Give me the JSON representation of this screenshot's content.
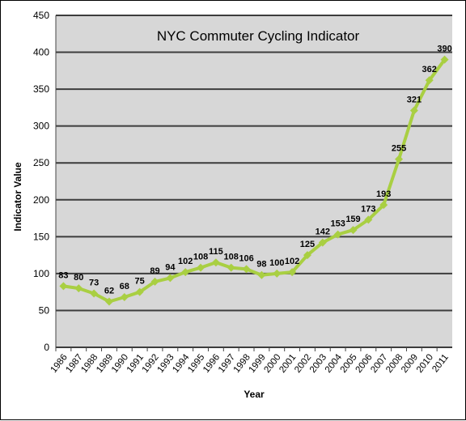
{
  "chart_data": {
    "type": "line",
    "title": "NYC Commuter Cycling Indicator",
    "xlabel": "Year",
    "ylabel": "Indicator Value",
    "ylim": [
      0,
      450
    ],
    "yticks": [
      0,
      50,
      100,
      150,
      200,
      250,
      300,
      350,
      400,
      450
    ],
    "grid": true,
    "legend": "none",
    "colors": {
      "plot_background": "#d7d7d7",
      "gridline": "#3c3c3c",
      "series_line": "#a9cf42",
      "series_marker": "#a9cf42"
    },
    "categories": [
      "1986",
      "1987",
      "1988",
      "1989",
      "1990",
      "1991",
      "1992",
      "1993",
      "1994",
      "1995",
      "1996",
      "1997",
      "1998",
      "1999",
      "2000",
      "2001",
      "2002",
      "2003",
      "2004",
      "2005",
      "2006",
      "2007",
      "2008",
      "2009",
      "2010",
      "2011"
    ],
    "series": [
      {
        "values": [
          83,
          80,
          73,
          62,
          68,
          75,
          89,
          94,
          102,
          108,
          115,
          108,
          106,
          98,
          100,
          102,
          125,
          142,
          153,
          159,
          173,
          193,
          255,
          321,
          362,
          390
        ]
      }
    ]
  }
}
